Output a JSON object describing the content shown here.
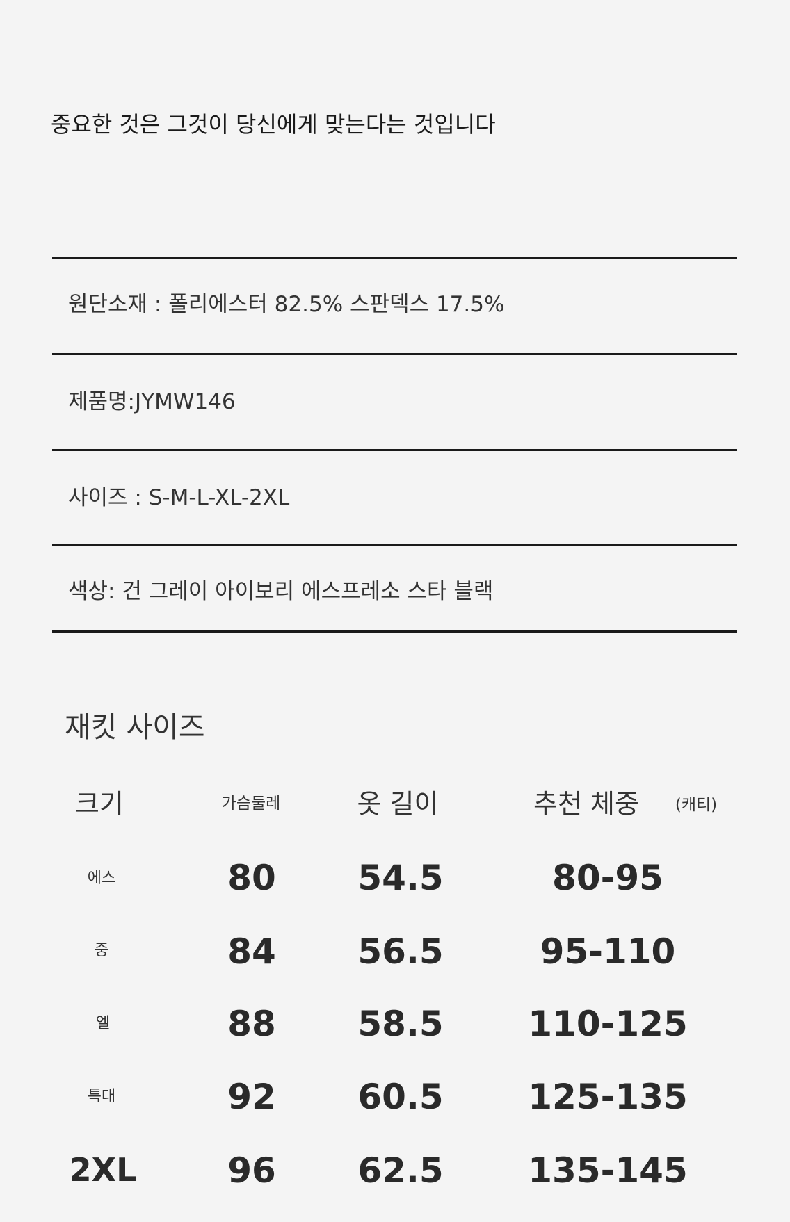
{
  "headline": "중요한 것은 그것이 당신에게 맞는다는 것입니다",
  "specs": [
    "원단소재 : 폴리에스터 82.5% 스판덱스 17.5%",
    "제품명:JYMW146",
    "사이즈 : S-M-L-XL-2XL",
    "색상: 건 그레이 아이보리 에스프레소 스타 블랙"
  ],
  "size_table": {
    "title": "재킷 사이즈",
    "headers": [
      "크기",
      "가슴둘레",
      "옷 길이",
      "추천 체중",
      "(캐티)"
    ],
    "rows": [
      {
        "size": "에스",
        "chest": "80",
        "length": "54.5",
        "weight": "80-95"
      },
      {
        "size": "중",
        "chest": "84",
        "length": "56.5",
        "weight": "95-110"
      },
      {
        "size": "엘",
        "chest": "88",
        "length": "58.5",
        "weight": "110-125"
      },
      {
        "size": "특대",
        "chest": "92",
        "length": "60.5",
        "weight": "125-135"
      },
      {
        "size": "2XL",
        "chest": "96",
        "length": "62.5",
        "weight": "135-145"
      }
    ]
  }
}
